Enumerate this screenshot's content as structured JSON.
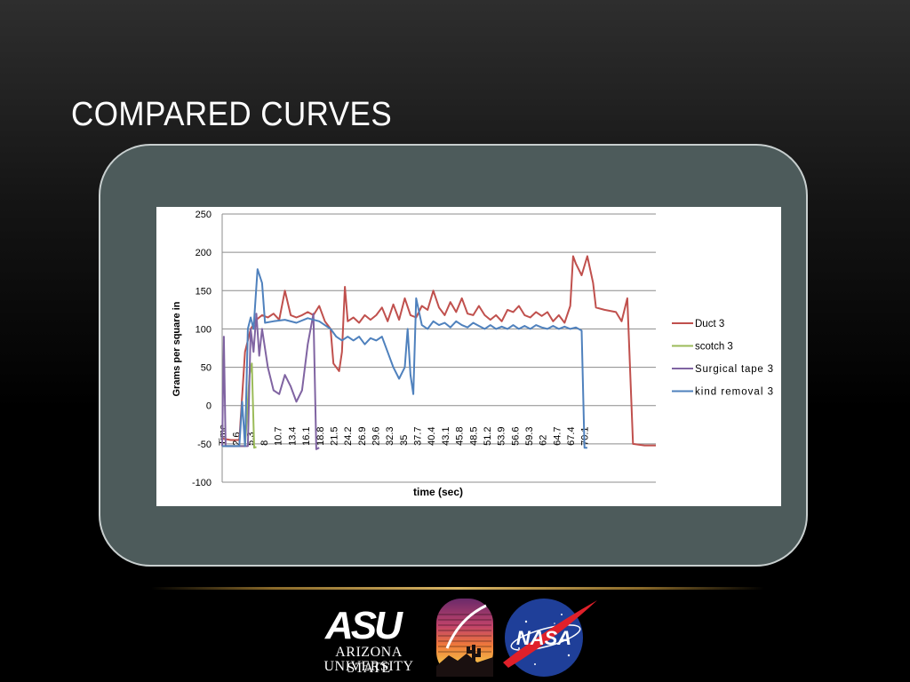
{
  "slide": {
    "title": "COMPARED CURVES"
  },
  "logos": {
    "asu_mark": "ASU",
    "asu_line1": "ARIZONA STATE",
    "asu_line2": "UNIVERSITY",
    "nasa": "NASA"
  },
  "colors": {
    "panel": "#4d5b5b",
    "duct": "#c0504d",
    "scotch": "#9bbb59",
    "surgical": "#8064a2",
    "kind": "#4f81bd",
    "gold_line": "#d9b565"
  },
  "chart_data": {
    "type": "line",
    "title": "",
    "xlabel": "time (sec)",
    "ylabel": "Grams per square in",
    "ylim": [
      -100,
      250
    ],
    "yticks": [
      -100,
      -50,
      0,
      50,
      100,
      150,
      200,
      250
    ],
    "xlim": [
      0,
      76
    ],
    "x_categories": [
      "Time",
      "2.6",
      "5.3",
      "8",
      "10.7",
      "13.4",
      "16.1",
      "18.8",
      "21.5",
      "24.2",
      "26.9",
      "29.6",
      "32.3",
      "35",
      "37.7",
      "40.4",
      "43.1",
      "45.8",
      "48.5",
      "51.2",
      "53.9",
      "56.6",
      "59.3",
      "62",
      "64.7",
      "67.4",
      "70.1"
    ],
    "grid": "horizontal",
    "legend_position": "right",
    "series": [
      {
        "name": "Duct 3",
        "points": [
          [
            0,
            -43
          ],
          [
            1.5,
            -45
          ],
          [
            3,
            -45
          ],
          [
            4,
            70
          ],
          [
            5,
            100
          ],
          [
            6,
            112
          ],
          [
            7,
            118
          ],
          [
            8,
            115
          ],
          [
            9,
            120
          ],
          [
            10,
            112
          ],
          [
            11,
            150
          ],
          [
            12,
            118
          ],
          [
            13,
            115
          ],
          [
            14,
            118
          ],
          [
            15,
            122
          ],
          [
            16,
            118
          ],
          [
            17,
            130
          ],
          [
            18,
            110
          ],
          [
            19,
            100
          ],
          [
            19.5,
            55
          ],
          [
            20.5,
            45
          ],
          [
            21,
            70
          ],
          [
            21.5,
            155
          ],
          [
            22,
            110
          ],
          [
            23,
            115
          ],
          [
            24,
            108
          ],
          [
            25,
            118
          ],
          [
            26,
            112
          ],
          [
            27,
            118
          ],
          [
            28,
            128
          ],
          [
            29,
            110
          ],
          [
            30,
            132
          ],
          [
            31,
            112
          ],
          [
            32,
            140
          ],
          [
            33,
            118
          ],
          [
            34,
            115
          ],
          [
            35,
            130
          ],
          [
            36,
            125
          ],
          [
            37,
            150
          ],
          [
            38,
            128
          ],
          [
            39,
            118
          ],
          [
            40,
            135
          ],
          [
            41,
            122
          ],
          [
            42,
            140
          ],
          [
            43,
            120
          ],
          [
            44,
            118
          ],
          [
            45,
            130
          ],
          [
            46,
            118
          ],
          [
            47,
            112
          ],
          [
            48,
            118
          ],
          [
            49,
            110
          ],
          [
            50,
            125
          ],
          [
            51,
            122
          ],
          [
            52,
            130
          ],
          [
            53,
            118
          ],
          [
            54,
            115
          ],
          [
            55,
            122
          ],
          [
            56,
            117
          ],
          [
            57,
            122
          ],
          [
            58,
            110
          ],
          [
            59,
            118
          ],
          [
            60,
            108
          ],
          [
            61,
            130
          ],
          [
            61.5,
            195
          ],
          [
            62,
            185
          ],
          [
            63,
            170
          ],
          [
            64,
            195
          ],
          [
            65,
            160
          ],
          [
            65.5,
            128
          ],
          [
            67,
            125
          ],
          [
            69,
            122
          ],
          [
            70,
            110
          ],
          [
            71,
            140
          ],
          [
            72,
            -50
          ],
          [
            74,
            -52
          ],
          [
            76,
            -52
          ]
        ]
      },
      {
        "name": "scotch 3",
        "points": [
          [
            0,
            -53
          ],
          [
            4,
            -53
          ],
          [
            4.8,
            40
          ],
          [
            5.2,
            55
          ],
          [
            5.6,
            -55
          ],
          [
            6,
            -54
          ]
        ]
      },
      {
        "name": "Surgical tape 3",
        "points": [
          [
            0,
            -53
          ],
          [
            0.3,
            90
          ],
          [
            0.6,
            -53
          ],
          [
            4.5,
            -53
          ],
          [
            5,
            100
          ],
          [
            5.5,
            70
          ],
          [
            6,
            120
          ],
          [
            6.5,
            65
          ],
          [
            7,
            100
          ],
          [
            8,
            50
          ],
          [
            9,
            20
          ],
          [
            10,
            15
          ],
          [
            11,
            40
          ],
          [
            12,
            25
          ],
          [
            13,
            5
          ],
          [
            14,
            20
          ],
          [
            15,
            80
          ],
          [
            16,
            120
          ],
          [
            16.5,
            -57
          ],
          [
            17,
            -55
          ]
        ]
      },
      {
        "name": "kind removal 3",
        "points": [
          [
            0,
            -53
          ],
          [
            3,
            -53
          ],
          [
            3.5,
            5
          ],
          [
            4,
            -53
          ],
          [
            4.5,
            100
          ],
          [
            5,
            115
          ],
          [
            5.5,
            100
          ],
          [
            6.2,
            178
          ],
          [
            7,
            160
          ],
          [
            7.5,
            108
          ],
          [
            9,
            110
          ],
          [
            11,
            112
          ],
          [
            13,
            108
          ],
          [
            15,
            114
          ],
          [
            17,
            110
          ],
          [
            19,
            100
          ],
          [
            20,
            90
          ],
          [
            21,
            85
          ],
          [
            22,
            90
          ],
          [
            23,
            85
          ],
          [
            24,
            90
          ],
          [
            25,
            80
          ],
          [
            26,
            88
          ],
          [
            27,
            85
          ],
          [
            28,
            90
          ],
          [
            29,
            70
          ],
          [
            30,
            50
          ],
          [
            31,
            35
          ],
          [
            32,
            50
          ],
          [
            32.5,
            100
          ],
          [
            33,
            40
          ],
          [
            33.5,
            15
          ],
          [
            34,
            140
          ],
          [
            35,
            105
          ],
          [
            36,
            100
          ],
          [
            37,
            110
          ],
          [
            38,
            105
          ],
          [
            39,
            108
          ],
          [
            40,
            102
          ],
          [
            41,
            110
          ],
          [
            42,
            105
          ],
          [
            43,
            102
          ],
          [
            44,
            108
          ],
          [
            45,
            104
          ],
          [
            46,
            100
          ],
          [
            47,
            105
          ],
          [
            48,
            100
          ],
          [
            49,
            103
          ],
          [
            50,
            100
          ],
          [
            51,
            105
          ],
          [
            52,
            100
          ],
          [
            53,
            104
          ],
          [
            54,
            100
          ],
          [
            55,
            105
          ],
          [
            56,
            102
          ],
          [
            57,
            100
          ],
          [
            58,
            104
          ],
          [
            59,
            100
          ],
          [
            60,
            103
          ],
          [
            61,
            100
          ],
          [
            62,
            102
          ],
          [
            63,
            98
          ],
          [
            63.5,
            -55
          ],
          [
            64,
            -55
          ]
        ]
      }
    ]
  }
}
